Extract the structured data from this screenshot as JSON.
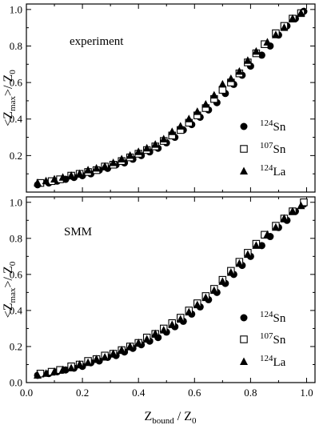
{
  "chart_data": [
    {
      "type": "scatter",
      "panel_label": "experiment",
      "ylabel": "<Z_max>/ Z_0",
      "xlim": [
        0,
        1.03
      ],
      "ylim": [
        0,
        1.03
      ],
      "yticks": [
        "0.2",
        "0.4",
        "0.6",
        "0.8",
        "1.0"
      ],
      "grid": false,
      "legend_position": "lower-right",
      "series": [
        {
          "name": "124Sn",
          "marker": "filled-circle",
          "points": [
            [
              0.04,
              0.04
            ],
            [
              0.08,
              0.05
            ],
            [
              0.11,
              0.06
            ],
            [
              0.14,
              0.07
            ],
            [
              0.17,
              0.08
            ],
            [
              0.2,
              0.09
            ],
            [
              0.23,
              0.1
            ],
            [
              0.26,
              0.12
            ],
            [
              0.29,
              0.13
            ],
            [
              0.32,
              0.15
            ],
            [
              0.35,
              0.16
            ],
            [
              0.38,
              0.18
            ],
            [
              0.41,
              0.2
            ],
            [
              0.44,
              0.22
            ],
            [
              0.47,
              0.24
            ],
            [
              0.5,
              0.27
            ],
            [
              0.53,
              0.3
            ],
            [
              0.56,
              0.34
            ],
            [
              0.59,
              0.37
            ],
            [
              0.62,
              0.41
            ],
            [
              0.65,
              0.45
            ],
            [
              0.68,
              0.49
            ],
            [
              0.71,
              0.54
            ],
            [
              0.74,
              0.59
            ],
            [
              0.77,
              0.64
            ],
            [
              0.8,
              0.69
            ],
            [
              0.84,
              0.75
            ],
            [
              0.87,
              0.8
            ],
            [
              0.9,
              0.86
            ],
            [
              0.93,
              0.91
            ],
            [
              0.96,
              0.95
            ],
            [
              0.99,
              0.99
            ]
          ]
        },
        {
          "name": "107Sn",
          "marker": "open-square",
          "points": [
            [
              0.05,
              0.05
            ],
            [
              0.09,
              0.06
            ],
            [
              0.12,
              0.07
            ],
            [
              0.16,
              0.09
            ],
            [
              0.19,
              0.1
            ],
            [
              0.22,
              0.11
            ],
            [
              0.25,
              0.12
            ],
            [
              0.28,
              0.14
            ],
            [
              0.31,
              0.15
            ],
            [
              0.34,
              0.17
            ],
            [
              0.37,
              0.19
            ],
            [
              0.4,
              0.21
            ],
            [
              0.43,
              0.23
            ],
            [
              0.46,
              0.25
            ],
            [
              0.49,
              0.28
            ],
            [
              0.52,
              0.31
            ],
            [
              0.55,
              0.34
            ],
            [
              0.58,
              0.38
            ],
            [
              0.61,
              0.42
            ],
            [
              0.64,
              0.46
            ],
            [
              0.67,
              0.51
            ],
            [
              0.7,
              0.56
            ],
            [
              0.73,
              0.6
            ],
            [
              0.76,
              0.65
            ],
            [
              0.79,
              0.71
            ],
            [
              0.82,
              0.76
            ],
            [
              0.85,
              0.81
            ],
            [
              0.89,
              0.87
            ],
            [
              0.92,
              0.91
            ],
            [
              0.95,
              0.95
            ],
            [
              0.98,
              0.98
            ]
          ]
        },
        {
          "name": "124La",
          "marker": "filled-triangle",
          "points": [
            [
              0.04,
              0.05
            ],
            [
              0.07,
              0.06
            ],
            [
              0.1,
              0.07
            ],
            [
              0.13,
              0.08
            ],
            [
              0.16,
              0.09
            ],
            [
              0.19,
              0.1
            ],
            [
              0.22,
              0.12
            ],
            [
              0.25,
              0.13
            ],
            [
              0.28,
              0.14
            ],
            [
              0.31,
              0.16
            ],
            [
              0.34,
              0.18
            ],
            [
              0.37,
              0.2
            ],
            [
              0.4,
              0.22
            ],
            [
              0.43,
              0.24
            ],
            [
              0.46,
              0.26
            ],
            [
              0.49,
              0.29
            ],
            [
              0.52,
              0.33
            ],
            [
              0.55,
              0.36
            ],
            [
              0.58,
              0.4
            ],
            [
              0.61,
              0.44
            ],
            [
              0.64,
              0.48
            ],
            [
              0.67,
              0.53
            ],
            [
              0.7,
              0.59
            ],
            [
              0.73,
              0.62
            ],
            [
              0.76,
              0.66
            ],
            [
              0.79,
              0.72
            ],
            [
              0.82,
              0.77
            ],
            [
              0.86,
              0.82
            ],
            [
              0.89,
              0.86
            ],
            [
              0.92,
              0.9
            ],
            [
              0.95,
              0.95
            ],
            [
              0.98,
              0.98
            ]
          ]
        }
      ]
    },
    {
      "type": "scatter",
      "panel_label": "SMM",
      "xlabel": "Z_bound / Z_0",
      "ylabel": "<Z_max>/ Z_0",
      "xlim": [
        0,
        1.03
      ],
      "ylim": [
        0,
        1.03
      ],
      "xticks": [
        "0.0",
        "0.2",
        "0.4",
        "0.6",
        "0.8",
        "1.0"
      ],
      "yticks": [
        "0.0",
        "0.2",
        "0.4",
        "0.6",
        "0.8",
        "1.0"
      ],
      "grid": false,
      "legend_position": "lower-right",
      "series": [
        {
          "name": "124Sn",
          "marker": "filled-circle",
          "points": [
            [
              0.04,
              0.04
            ],
            [
              0.08,
              0.05
            ],
            [
              0.11,
              0.06
            ],
            [
              0.14,
              0.07
            ],
            [
              0.17,
              0.08
            ],
            [
              0.2,
              0.09
            ],
            [
              0.23,
              0.11
            ],
            [
              0.26,
              0.12
            ],
            [
              0.29,
              0.14
            ],
            [
              0.32,
              0.15
            ],
            [
              0.35,
              0.17
            ],
            [
              0.38,
              0.19
            ],
            [
              0.41,
              0.21
            ],
            [
              0.44,
              0.23
            ],
            [
              0.47,
              0.25
            ],
            [
              0.5,
              0.28
            ],
            [
              0.53,
              0.31
            ],
            [
              0.56,
              0.34
            ],
            [
              0.59,
              0.38
            ],
            [
              0.62,
              0.42
            ],
            [
              0.65,
              0.46
            ],
            [
              0.68,
              0.5
            ],
            [
              0.71,
              0.55
            ],
            [
              0.74,
              0.6
            ],
            [
              0.77,
              0.65
            ],
            [
              0.8,
              0.7
            ],
            [
              0.84,
              0.76
            ],
            [
              0.87,
              0.81
            ],
            [
              0.9,
              0.86
            ],
            [
              0.93,
              0.9
            ],
            [
              0.96,
              0.95
            ],
            [
              0.99,
              0.99
            ]
          ]
        },
        {
          "name": "107Sn",
          "marker": "open-square",
          "points": [
            [
              0.05,
              0.05
            ],
            [
              0.09,
              0.06
            ],
            [
              0.12,
              0.07
            ],
            [
              0.16,
              0.09
            ],
            [
              0.19,
              0.1
            ],
            [
              0.22,
              0.12
            ],
            [
              0.25,
              0.13
            ],
            [
              0.28,
              0.15
            ],
            [
              0.31,
              0.16
            ],
            [
              0.34,
              0.18
            ],
            [
              0.37,
              0.2
            ],
            [
              0.4,
              0.22
            ],
            [
              0.43,
              0.25
            ],
            [
              0.46,
              0.27
            ],
            [
              0.49,
              0.3
            ],
            [
              0.52,
              0.33
            ],
            [
              0.55,
              0.36
            ],
            [
              0.58,
              0.4
            ],
            [
              0.61,
              0.44
            ],
            [
              0.64,
              0.48
            ],
            [
              0.67,
              0.52
            ],
            [
              0.7,
              0.57
            ],
            [
              0.73,
              0.62
            ],
            [
              0.76,
              0.67
            ],
            [
              0.79,
              0.72
            ],
            [
              0.82,
              0.77
            ],
            [
              0.85,
              0.82
            ],
            [
              0.89,
              0.87
            ],
            [
              0.92,
              0.91
            ],
            [
              0.95,
              0.95
            ],
            [
              0.99,
              1.0
            ]
          ]
        },
        {
          "name": "124La",
          "marker": "filled-triangle",
          "points": [
            [
              0.04,
              0.04
            ],
            [
              0.07,
              0.05
            ],
            [
              0.1,
              0.06
            ],
            [
              0.13,
              0.07
            ],
            [
              0.16,
              0.08
            ],
            [
              0.19,
              0.1
            ],
            [
              0.22,
              0.11
            ],
            [
              0.25,
              0.13
            ],
            [
              0.28,
              0.14
            ],
            [
              0.31,
              0.16
            ],
            [
              0.34,
              0.18
            ],
            [
              0.37,
              0.2
            ],
            [
              0.4,
              0.22
            ],
            [
              0.43,
              0.24
            ],
            [
              0.46,
              0.27
            ],
            [
              0.49,
              0.29
            ],
            [
              0.52,
              0.32
            ],
            [
              0.55,
              0.35
            ],
            [
              0.58,
              0.39
            ],
            [
              0.61,
              0.43
            ],
            [
              0.64,
              0.47
            ],
            [
              0.67,
              0.51
            ],
            [
              0.7,
              0.56
            ],
            [
              0.73,
              0.61
            ],
            [
              0.76,
              0.66
            ],
            [
              0.79,
              0.71
            ],
            [
              0.82,
              0.76
            ],
            [
              0.86,
              0.82
            ],
            [
              0.89,
              0.86
            ],
            [
              0.92,
              0.91
            ],
            [
              0.95,
              0.95
            ],
            [
              0.98,
              0.98
            ]
          ]
        }
      ]
    }
  ]
}
